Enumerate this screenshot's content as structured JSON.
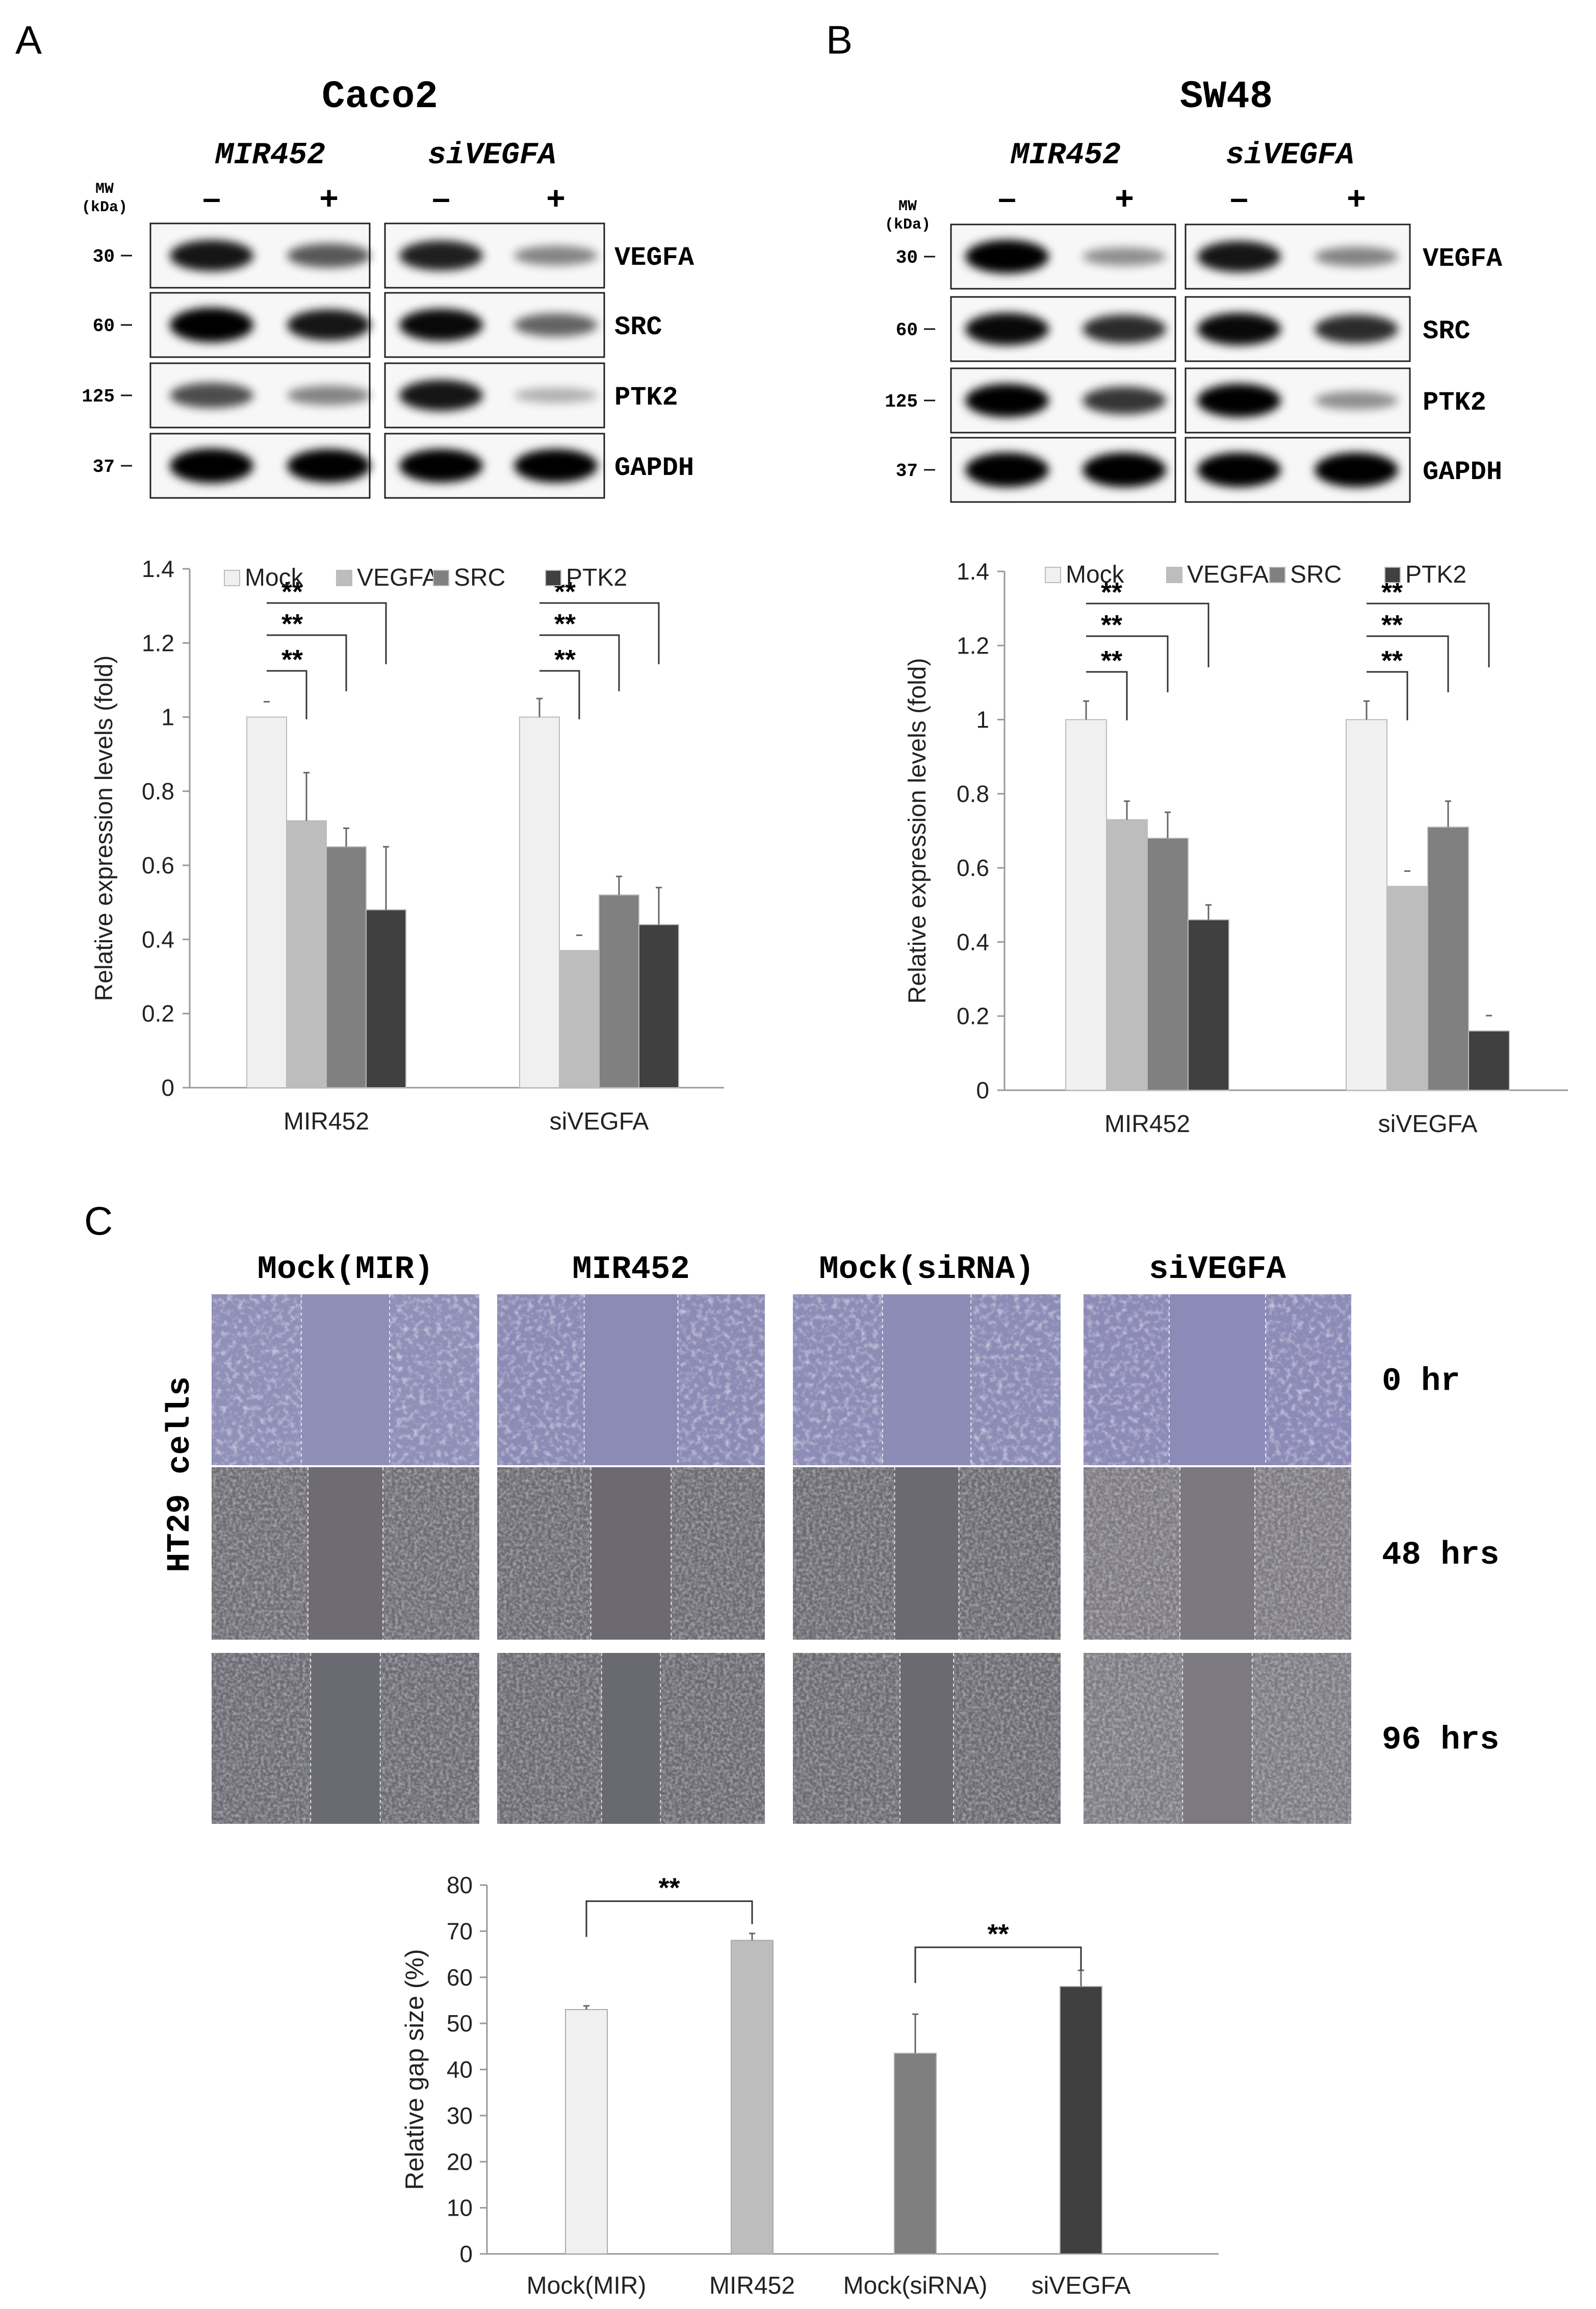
{
  "panels": {
    "a": {
      "letter": "A",
      "cell_line": "Caco2",
      "groups": [
        "MIR452",
        "siVEGFA"
      ],
      "treatment_labels": [
        "–",
        "+",
        "–",
        "+"
      ],
      "mw_label": [
        "MW",
        "(kDa)"
      ],
      "blot_rows": [
        {
          "protein": "VEGFA",
          "mw": "30"
        },
        {
          "protein": "SRC",
          "mw": "60"
        },
        {
          "protein": "PTK2",
          "mw": "125"
        },
        {
          "protein": "GAPDH",
          "mw": "37"
        }
      ],
      "bands": [
        [
          [
            0.85,
            0.55
          ],
          [
            0.8,
            0.35
          ]
        ],
        [
          [
            1.0,
            0.85
          ],
          [
            0.9,
            0.5
          ]
        ],
        [
          [
            0.6,
            0.35
          ],
          [
            0.85,
            0.15
          ]
        ],
        [
          [
            1.0,
            0.95
          ],
          [
            0.95,
            0.95
          ]
        ]
      ]
    },
    "b": {
      "letter": "B",
      "cell_line": "SW48",
      "groups": [
        "MIR452",
        "siVEGFA"
      ],
      "treatment_labels": [
        "–",
        "+",
        "–",
        "+"
      ],
      "mw_label": [
        "MW",
        "(kDa)"
      ],
      "blot_rows": [
        {
          "protein": "VEGFA",
          "mw": "30"
        },
        {
          "protein": "SRC",
          "mw": "60"
        },
        {
          "protein": "PTK2",
          "mw": "125"
        },
        {
          "protein": "GAPDH",
          "mw": "37"
        }
      ],
      "bands": [
        [
          [
            0.95,
            0.3
          ],
          [
            0.85,
            0.35
          ]
        ],
        [
          [
            0.9,
            0.75
          ],
          [
            0.9,
            0.75
          ]
        ],
        [
          [
            0.95,
            0.7
          ],
          [
            0.95,
            0.3
          ]
        ],
        [
          [
            1.0,
            1.0
          ],
          [
            1.0,
            1.0
          ]
        ]
      ]
    },
    "c": {
      "letter": "C",
      "row_axis_label": "HT29 cells",
      "conditions": [
        "Mock(MIR)",
        "MIR452",
        "Mock(siRNA)",
        "siVEGFA"
      ],
      "timepoints": [
        "0 hr",
        "48 hrs",
        "96 hrs"
      ],
      "gap_fraction": [
        [
          0.33,
          0.35,
          0.33,
          0.36
        ],
        [
          0.28,
          0.3,
          0.24,
          0.28
        ],
        [
          0.26,
          0.22,
          0.2,
          0.26
        ]
      ]
    }
  },
  "chart_data": [
    {
      "type": "bar",
      "panel": "A",
      "categories": [
        "MIR452",
        "siVEGFA"
      ],
      "series": [
        {
          "name": "Mock",
          "values": [
            1.0,
            1.0
          ],
          "errors": [
            0.0,
            0.05
          ],
          "color": "#f0f0f0"
        },
        {
          "name": "VEGFA",
          "values": [
            0.72,
            0.37
          ],
          "errors": [
            0.13,
            0.0
          ],
          "color": "#bdbdbd"
        },
        {
          "name": "SRC",
          "values": [
            0.65,
            0.52
          ],
          "errors": [
            0.05,
            0.05
          ],
          "color": "#808080"
        },
        {
          "name": "PTK2",
          "values": [
            0.48,
            0.44
          ],
          "errors": [
            0.17,
            0.1
          ],
          "color": "#404040"
        }
      ],
      "ylabel": "Relative expression levels (fold)",
      "ylim": [
        0,
        1.4
      ],
      "yticks": [
        0,
        0.2,
        0.4,
        0.6,
        0.8,
        1,
        1.2,
        1.4
      ],
      "significance": [
        "**",
        "**",
        "**"
      ],
      "legend": "top"
    },
    {
      "type": "bar",
      "panel": "B",
      "categories": [
        "MIR452",
        "siVEGFA"
      ],
      "series": [
        {
          "name": "Mock",
          "values": [
            1.0,
            1.0
          ],
          "errors": [
            0.05,
            0.05
          ],
          "color": "#f0f0f0"
        },
        {
          "name": "VEGFA",
          "values": [
            0.73,
            0.55
          ],
          "errors": [
            0.05,
            0.0
          ],
          "color": "#bdbdbd"
        },
        {
          "name": "SRC",
          "values": [
            0.68,
            0.71
          ],
          "errors": [
            0.07,
            0.07
          ],
          "color": "#808080"
        },
        {
          "name": "PTK2",
          "values": [
            0.46,
            0.16
          ],
          "errors": [
            0.04,
            0.0
          ],
          "color": "#404040"
        }
      ],
      "ylabel": "Relative expression levels (fold)",
      "ylim": [
        0,
        1.4
      ],
      "yticks": [
        0,
        0.2,
        0.4,
        0.6,
        0.8,
        1,
        1.2,
        1.4
      ],
      "significance": [
        "**",
        "**",
        "**"
      ],
      "legend": "top"
    },
    {
      "type": "bar",
      "panel": "C",
      "categories": [
        "Mock(MIR)",
        "MIR452",
        "Mock(siRNA)",
        "siVEGFA"
      ],
      "values": [
        53,
        68,
        43.5,
        58
      ],
      "errors": [
        0.8,
        1.5,
        8.5,
        3.5
      ],
      "colors": [
        "#f0f0f0",
        "#bdbdbd",
        "#7f7f7f",
        "#404040"
      ],
      "ylabel": "Relative gap size (%)",
      "ylim": [
        0,
        80
      ],
      "yticks": [
        0,
        10,
        20,
        30,
        40,
        50,
        60,
        70,
        80
      ],
      "significance": [
        {
          "between": [
            "Mock(MIR)",
            "MIR452"
          ],
          "label": "**"
        },
        {
          "between": [
            "Mock(siRNA)",
            "siVEGFA"
          ],
          "label": "**"
        }
      ]
    }
  ]
}
